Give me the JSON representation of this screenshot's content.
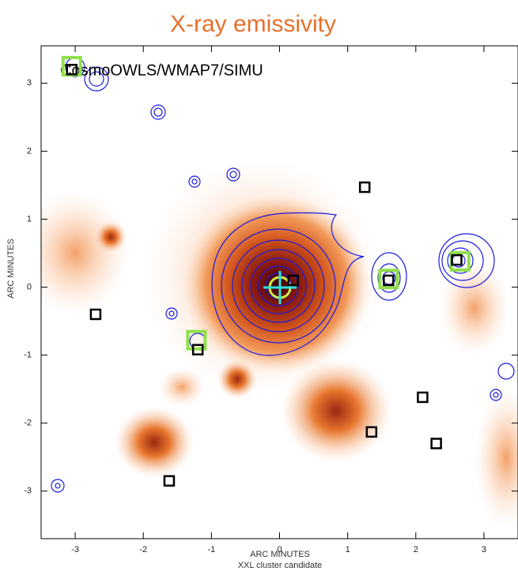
{
  "chart_data": {
    "type": "scatter",
    "title": "X-ray emissivity",
    "annotation": "CosmoOWLS/WMAP7/SIMU",
    "x_label": "ARC MINUTES",
    "subtitle": "XXL cluster candidate",
    "y_label": "ARC MINUTES",
    "xlim": [
      -3.5,
      3.5
    ],
    "ylim": [
      -3.7,
      3.55
    ],
    "xticks": [
      -3,
      -2,
      -1,
      0,
      1,
      2,
      3
    ],
    "yticks": [
      -3,
      -2,
      -1,
      0,
      1,
      2,
      3
    ],
    "series": [
      {
        "color": "#8fe04a",
        "x": [
          -3.05,
          1.6,
          2.65,
          -1.22
        ],
        "values": [
          3.25,
          0.12,
          0.38,
          -0.78
        ]
      },
      {
        "color": "#000000",
        "x": [
          1.25,
          -2.7,
          -1.2,
          2.1,
          1.35,
          2.3,
          -1.62,
          0.2,
          1.6,
          2.6,
          -3.05
        ],
        "values": [
          1.47,
          -0.4,
          -0.92,
          -1.62,
          -2.13,
          -2.3,
          -2.85,
          0.1,
          0.1,
          0.4,
          3.2
        ]
      }
    ]
  }
}
